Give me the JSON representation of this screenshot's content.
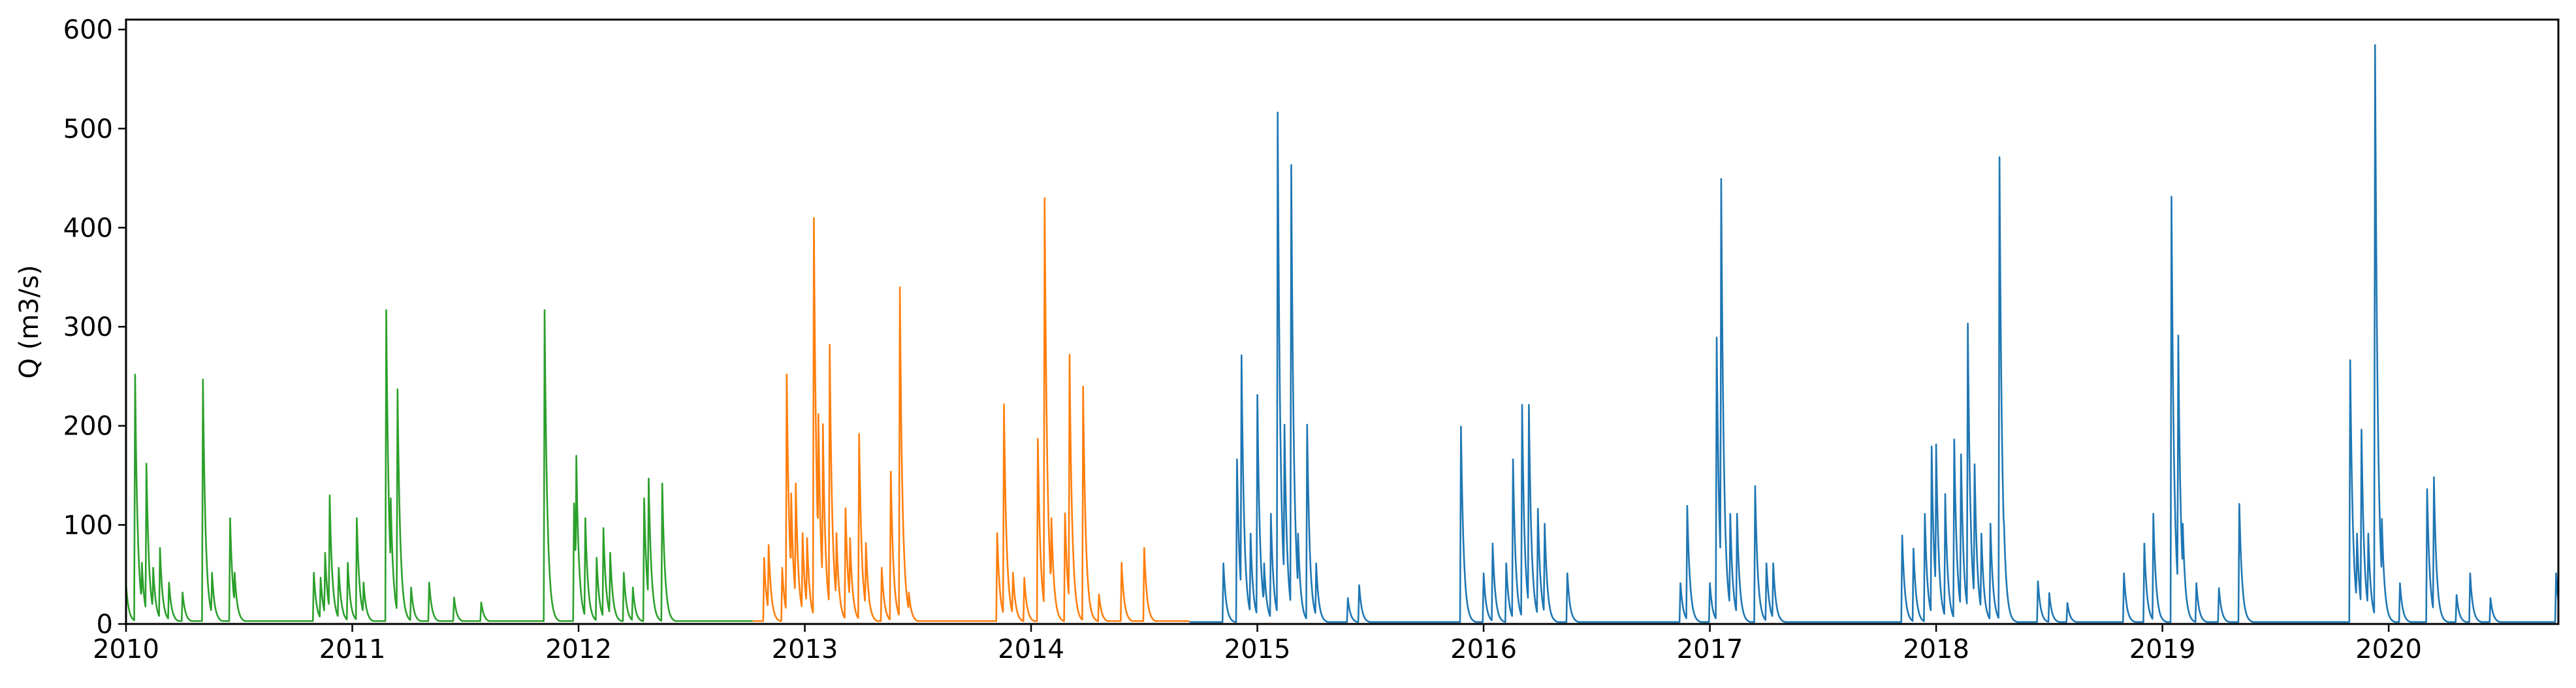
{
  "chart_data": {
    "type": "line",
    "title": "",
    "xlabel": "",
    "ylabel": "Q (m3/s)",
    "xlim": [
      2010.0,
      2020.75
    ],
    "ylim": [
      0,
      610
    ],
    "grid": false,
    "x_ticks": [
      "2010",
      "2011",
      "2012",
      "2013",
      "2014",
      "2015",
      "2016",
      "2017",
      "2018",
      "2019",
      "2020"
    ],
    "y_ticks": [
      "0",
      "100",
      "200",
      "300",
      "400",
      "500",
      "600"
    ],
    "series": [
      {
        "color": "#2ca02c",
        "x_range": [
          2010.0,
          2012.77
        ],
        "baseline": 3,
        "peaks": [
          [
            2010.0,
            38
          ],
          [
            2010.04,
            250
          ],
          [
            2010.07,
            60
          ],
          [
            2010.09,
            160
          ],
          [
            2010.12,
            55
          ],
          [
            2010.15,
            75
          ],
          [
            2010.19,
            40
          ],
          [
            2010.25,
            30
          ],
          [
            2010.34,
            245
          ],
          [
            2010.38,
            50
          ],
          [
            2010.46,
            105
          ],
          [
            2010.48,
            50
          ],
          [
            2010.83,
            50
          ],
          [
            2010.86,
            45
          ],
          [
            2010.88,
            70
          ],
          [
            2010.9,
            128
          ],
          [
            2010.94,
            55
          ],
          [
            2010.98,
            60
          ],
          [
            2011.02,
            105
          ],
          [
            2011.05,
            40
          ],
          [
            2011.15,
            315
          ],
          [
            2011.17,
            125
          ],
          [
            2011.2,
            235
          ],
          [
            2011.26,
            35
          ],
          [
            2011.34,
            40
          ],
          [
            2011.45,
            25
          ],
          [
            2011.57,
            20
          ],
          [
            2011.85,
            315
          ],
          [
            2011.98,
            120
          ],
          [
            2011.99,
            168
          ],
          [
            2012.03,
            105
          ],
          [
            2012.08,
            65
          ],
          [
            2012.11,
            95
          ],
          [
            2012.14,
            70
          ],
          [
            2012.2,
            50
          ],
          [
            2012.24,
            35
          ],
          [
            2012.29,
            125
          ],
          [
            2012.31,
            145
          ],
          [
            2012.37,
            140
          ]
        ]
      },
      {
        "color": "#ff7f0e",
        "x_range": [
          2012.77,
          2014.7
        ],
        "baseline": 3,
        "peaks": [
          [
            2012.82,
            65
          ],
          [
            2012.84,
            78
          ],
          [
            2012.9,
            55
          ],
          [
            2012.92,
            250
          ],
          [
            2012.94,
            130
          ],
          [
            2012.96,
            140
          ],
          [
            2012.99,
            90
          ],
          [
            2013.01,
            85
          ],
          [
            2013.04,
            408
          ],
          [
            2013.06,
            210
          ],
          [
            2013.08,
            200
          ],
          [
            2013.11,
            280
          ],
          [
            2013.14,
            90
          ],
          [
            2013.18,
            115
          ],
          [
            2013.2,
            85
          ],
          [
            2013.24,
            190
          ],
          [
            2013.27,
            80
          ],
          [
            2013.34,
            55
          ],
          [
            2013.38,
            152
          ],
          [
            2013.42,
            338
          ],
          [
            2013.46,
            30
          ],
          [
            2013.85,
            90
          ],
          [
            2013.88,
            220
          ],
          [
            2013.92,
            50
          ],
          [
            2013.97,
            45
          ],
          [
            2014.03,
            185
          ],
          [
            2014.06,
            428
          ],
          [
            2014.09,
            105
          ],
          [
            2014.15,
            110
          ],
          [
            2014.17,
            270
          ],
          [
            2014.23,
            238
          ],
          [
            2014.3,
            28
          ],
          [
            2014.4,
            60
          ],
          [
            2014.5,
            75
          ]
        ]
      },
      {
        "color": "#1f77b4",
        "x_range": [
          2014.7,
          2020.75
        ],
        "baseline": 2,
        "peaks": [
          [
            2014.85,
            60
          ],
          [
            2014.91,
            165
          ],
          [
            2014.93,
            270
          ],
          [
            2014.97,
            90
          ],
          [
            2015.0,
            230
          ],
          [
            2015.03,
            60
          ],
          [
            2015.06,
            110
          ],
          [
            2015.09,
            515
          ],
          [
            2015.12,
            200
          ],
          [
            2015.15,
            462
          ],
          [
            2015.18,
            90
          ],
          [
            2015.22,
            200
          ],
          [
            2015.26,
            60
          ],
          [
            2015.4,
            25
          ],
          [
            2015.45,
            38
          ],
          [
            2015.9,
            198
          ],
          [
            2016.0,
            50
          ],
          [
            2016.04,
            80
          ],
          [
            2016.1,
            60
          ],
          [
            2016.13,
            165
          ],
          [
            2016.17,
            220
          ],
          [
            2016.2,
            220
          ],
          [
            2016.24,
            115
          ],
          [
            2016.27,
            100
          ],
          [
            2016.37,
            50
          ],
          [
            2016.87,
            40
          ],
          [
            2016.9,
            118
          ],
          [
            2017.0,
            40
          ],
          [
            2017.03,
            288
          ],
          [
            2017.05,
            448
          ],
          [
            2017.09,
            110
          ],
          [
            2017.12,
            110
          ],
          [
            2017.2,
            138
          ],
          [
            2017.25,
            60
          ],
          [
            2017.28,
            60
          ],
          [
            2017.85,
            88
          ],
          [
            2017.9,
            75
          ],
          [
            2017.95,
            110
          ],
          [
            2017.98,
            178
          ],
          [
            2018.0,
            180
          ],
          [
            2018.04,
            130
          ],
          [
            2018.08,
            185
          ],
          [
            2018.11,
            170
          ],
          [
            2018.14,
            302
          ],
          [
            2018.17,
            160
          ],
          [
            2018.2,
            90
          ],
          [
            2018.24,
            100
          ],
          [
            2018.28,
            470
          ],
          [
            2018.3,
            100
          ],
          [
            2018.45,
            42
          ],
          [
            2018.5,
            30
          ],
          [
            2018.58,
            20
          ],
          [
            2018.83,
            50
          ],
          [
            2018.92,
            80
          ],
          [
            2018.96,
            110
          ],
          [
            2019.04,
            430
          ],
          [
            2019.07,
            290
          ],
          [
            2019.09,
            100
          ],
          [
            2019.15,
            40
          ],
          [
            2019.25,
            35
          ],
          [
            2019.34,
            120
          ],
          [
            2019.83,
            265
          ],
          [
            2019.86,
            90
          ],
          [
            2019.88,
            195
          ],
          [
            2019.91,
            90
          ],
          [
            2019.94,
            583
          ],
          [
            2019.97,
            105
          ],
          [
            2020.05,
            40
          ],
          [
            2020.17,
            135
          ],
          [
            2020.2,
            147
          ],
          [
            2020.3,
            28
          ],
          [
            2020.36,
            50
          ],
          [
            2020.45,
            25
          ],
          [
            2020.74,
            50
          ]
        ]
      }
    ]
  }
}
